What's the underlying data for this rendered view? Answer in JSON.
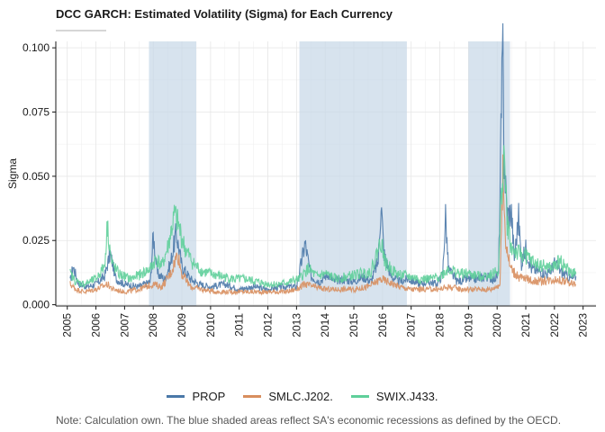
{
  "chart_data": {
    "type": "line",
    "title": "DCC GARCH: Estimated Volatility (Sigma) for Each Currency",
    "xlabel": "",
    "ylabel": "Sigma",
    "xlim": [
      2004.6,
      2023.45
    ],
    "ylim": [
      -0.0005,
      0.1025
    ],
    "yticks": [
      0.0,
      0.025,
      0.05,
      0.075,
      0.1
    ],
    "ytick_labels": [
      "0.000",
      "0.025",
      "0.050",
      "0.075",
      "0.100"
    ],
    "xticks": [
      2005,
      2006,
      2007,
      2008,
      2009,
      2010,
      2011,
      2012,
      2013,
      2014,
      2015,
      2016,
      2017,
      2018,
      2019,
      2020,
      2021,
      2022,
      2023
    ],
    "grid": true,
    "legend_position": "bottom",
    "recessions": [
      [
        2007.85,
        2009.5
      ],
      [
        2013.1,
        2016.85
      ],
      [
        2019.0,
        2020.45
      ]
    ],
    "recession_color": "#c6d7e7",
    "series": [
      {
        "name": "PROP",
        "color": "#4a78a8",
        "points": [
          [
            2005.1,
            0.009
          ],
          [
            2005.2,
            0.015
          ],
          [
            2005.4,
            0.008
          ],
          [
            2005.7,
            0.007
          ],
          [
            2006.0,
            0.008
          ],
          [
            2006.3,
            0.011
          ],
          [
            2006.5,
            0.02
          ],
          [
            2006.7,
            0.01
          ],
          [
            2007.0,
            0.008
          ],
          [
            2007.5,
            0.007
          ],
          [
            2007.9,
            0.009
          ],
          [
            2008.0,
            0.027
          ],
          [
            2008.15,
            0.012
          ],
          [
            2008.4,
            0.01
          ],
          [
            2008.6,
            0.016
          ],
          [
            2008.8,
            0.028
          ],
          [
            2009.0,
            0.015
          ],
          [
            2009.3,
            0.01
          ],
          [
            2009.6,
            0.008
          ],
          [
            2010.0,
            0.007
          ],
          [
            2010.5,
            0.008
          ],
          [
            2011.0,
            0.006
          ],
          [
            2011.5,
            0.007
          ],
          [
            2012.0,
            0.006
          ],
          [
            2012.5,
            0.007
          ],
          [
            2013.0,
            0.007
          ],
          [
            2013.3,
            0.024
          ],
          [
            2013.5,
            0.011
          ],
          [
            2013.8,
            0.009
          ],
          [
            2014.1,
            0.012
          ],
          [
            2014.3,
            0.009
          ],
          [
            2014.6,
            0.01
          ],
          [
            2015.0,
            0.009
          ],
          [
            2015.3,
            0.011
          ],
          [
            2015.6,
            0.009
          ],
          [
            2015.85,
            0.017
          ],
          [
            2015.95,
            0.04
          ],
          [
            2016.05,
            0.02
          ],
          [
            2016.3,
            0.011
          ],
          [
            2016.6,
            0.009
          ],
          [
            2016.9,
            0.01
          ],
          [
            2017.3,
            0.008
          ],
          [
            2017.6,
            0.009
          ],
          [
            2017.9,
            0.008
          ],
          [
            2018.1,
            0.012
          ],
          [
            2018.2,
            0.035
          ],
          [
            2018.3,
            0.014
          ],
          [
            2018.6,
            0.009
          ],
          [
            2019.0,
            0.01
          ],
          [
            2019.3,
            0.01
          ],
          [
            2019.6,
            0.011
          ],
          [
            2019.9,
            0.01
          ],
          [
            2020.05,
            0.012
          ],
          [
            2020.15,
            0.075
          ],
          [
            2020.2,
            0.097
          ],
          [
            2020.25,
            0.055
          ],
          [
            2020.35,
            0.035
          ],
          [
            2020.5,
            0.036
          ],
          [
            2020.6,
            0.018
          ],
          [
            2020.75,
            0.034
          ],
          [
            2020.85,
            0.016
          ],
          [
            2021.0,
            0.022
          ],
          [
            2021.2,
            0.014
          ],
          [
            2021.5,
            0.013
          ],
          [
            2021.8,
            0.012
          ],
          [
            2022.0,
            0.016
          ],
          [
            2022.3,
            0.012
          ],
          [
            2022.6,
            0.01
          ],
          [
            2022.75,
            0.011
          ]
        ]
      },
      {
        "name": "SMLC.J202.",
        "color": "#d88e5e",
        "points": [
          [
            2005.1,
            0.008
          ],
          [
            2005.3,
            0.006
          ],
          [
            2005.6,
            0.005
          ],
          [
            2006.0,
            0.006
          ],
          [
            2006.4,
            0.008
          ],
          [
            2006.6,
            0.006
          ],
          [
            2007.0,
            0.005
          ],
          [
            2007.5,
            0.006
          ],
          [
            2008.0,
            0.008
          ],
          [
            2008.3,
            0.007
          ],
          [
            2008.6,
            0.012
          ],
          [
            2008.85,
            0.02
          ],
          [
            2009.0,
            0.012
          ],
          [
            2009.3,
            0.007
          ],
          [
            2009.7,
            0.006
          ],
          [
            2010.2,
            0.005
          ],
          [
            2010.8,
            0.005
          ],
          [
            2011.4,
            0.005
          ],
          [
            2012.0,
            0.005
          ],
          [
            2012.6,
            0.005
          ],
          [
            2013.0,
            0.006
          ],
          [
            2013.3,
            0.008
          ],
          [
            2013.6,
            0.007
          ],
          [
            2014.0,
            0.006
          ],
          [
            2014.5,
            0.006
          ],
          [
            2015.0,
            0.006
          ],
          [
            2015.5,
            0.007
          ],
          [
            2015.95,
            0.01
          ],
          [
            2016.2,
            0.009
          ],
          [
            2016.6,
            0.007
          ],
          [
            2017.0,
            0.006
          ],
          [
            2017.6,
            0.006
          ],
          [
            2018.0,
            0.006
          ],
          [
            2018.3,
            0.007
          ],
          [
            2018.8,
            0.006
          ],
          [
            2019.3,
            0.006
          ],
          [
            2019.8,
            0.006
          ],
          [
            2020.1,
            0.008
          ],
          [
            2020.2,
            0.05
          ],
          [
            2020.3,
            0.025
          ],
          [
            2020.45,
            0.015
          ],
          [
            2020.7,
            0.011
          ],
          [
            2021.0,
            0.01
          ],
          [
            2021.5,
            0.009
          ],
          [
            2022.0,
            0.01
          ],
          [
            2022.4,
            0.009
          ],
          [
            2022.75,
            0.008
          ]
        ]
      },
      {
        "name": "SWIX.J433.",
        "color": "#5fcf9a",
        "points": [
          [
            2005.1,
            0.012
          ],
          [
            2005.3,
            0.009
          ],
          [
            2005.6,
            0.008
          ],
          [
            2006.0,
            0.01
          ],
          [
            2006.3,
            0.015
          ],
          [
            2006.4,
            0.031
          ],
          [
            2006.55,
            0.016
          ],
          [
            2006.8,
            0.012
          ],
          [
            2007.2,
            0.01
          ],
          [
            2007.6,
            0.012
          ],
          [
            2007.9,
            0.014
          ],
          [
            2008.1,
            0.018
          ],
          [
            2008.3,
            0.015
          ],
          [
            2008.5,
            0.022
          ],
          [
            2008.75,
            0.035
          ],
          [
            2008.9,
            0.03
          ],
          [
            2009.1,
            0.022
          ],
          [
            2009.4,
            0.016
          ],
          [
            2009.7,
            0.013
          ],
          [
            2010.0,
            0.012
          ],
          [
            2010.4,
            0.011
          ],
          [
            2010.8,
            0.01
          ],
          [
            2011.2,
            0.01
          ],
          [
            2011.6,
            0.009
          ],
          [
            2012.0,
            0.008
          ],
          [
            2012.4,
            0.008
          ],
          [
            2012.8,
            0.009
          ],
          [
            2013.1,
            0.01
          ],
          [
            2013.4,
            0.014
          ],
          [
            2013.7,
            0.011
          ],
          [
            2014.0,
            0.012
          ],
          [
            2014.4,
            0.01
          ],
          [
            2014.8,
            0.011
          ],
          [
            2015.2,
            0.012
          ],
          [
            2015.6,
            0.013
          ],
          [
            2015.95,
            0.025
          ],
          [
            2016.1,
            0.016
          ],
          [
            2016.5,
            0.012
          ],
          [
            2016.9,
            0.011
          ],
          [
            2017.3,
            0.01
          ],
          [
            2017.7,
            0.01
          ],
          [
            2018.0,
            0.011
          ],
          [
            2018.3,
            0.014
          ],
          [
            2018.7,
            0.012
          ],
          [
            2019.0,
            0.012
          ],
          [
            2019.4,
            0.011
          ],
          [
            2019.8,
            0.012
          ],
          [
            2020.05,
            0.013
          ],
          [
            2020.15,
            0.045
          ],
          [
            2020.25,
            0.058
          ],
          [
            2020.35,
            0.032
          ],
          [
            2020.5,
            0.022
          ],
          [
            2020.7,
            0.02
          ],
          [
            2021.0,
            0.019
          ],
          [
            2021.3,
            0.016
          ],
          [
            2021.6,
            0.015
          ],
          [
            2021.9,
            0.014
          ],
          [
            2022.2,
            0.017
          ],
          [
            2022.5,
            0.013
          ],
          [
            2022.75,
            0.012
          ]
        ]
      }
    ]
  },
  "note": "Note: Calculation own. The blue shaded areas reflect SA's economic recessions as defined by the OECD."
}
